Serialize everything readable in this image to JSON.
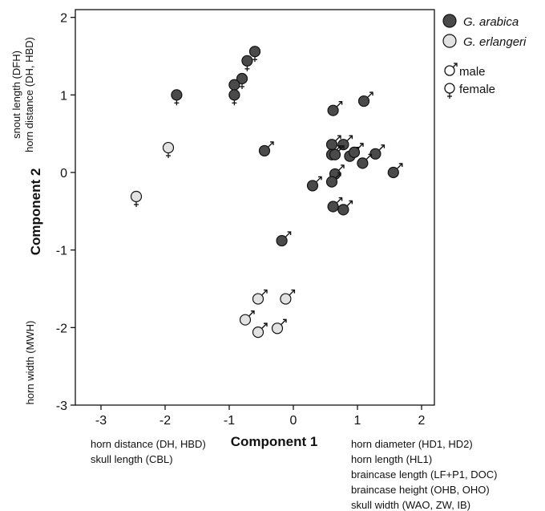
{
  "chart_data": {
    "type": "scatter",
    "xlabel": "Component 1",
    "ylabel": "Component 2",
    "xlim": [
      -3.4,
      2.2
    ],
    "ylim": [
      -3,
      2.1
    ],
    "x_ticks": [
      -3,
      -2,
      -1,
      0,
      1,
      2
    ],
    "y_ticks": [
      2,
      1,
      0,
      -1,
      -2,
      -3
    ],
    "grid": false,
    "legend_position": "right",
    "series": [
      {
        "name": "G. arabica",
        "color": "#4a4a4a",
        "points": [
          {
            "x": -0.6,
            "y": 1.56,
            "sex": "female"
          },
          {
            "x": -0.72,
            "y": 1.44,
            "sex": "female"
          },
          {
            "x": -0.8,
            "y": 1.21,
            "sex": "female"
          },
          {
            "x": -0.92,
            "y": 1.13,
            "sex": "female"
          },
          {
            "x": -0.92,
            "y": 1.0,
            "sex": "female"
          },
          {
            "x": -1.82,
            "y": 1.0,
            "sex": "female"
          },
          {
            "x": -0.45,
            "y": 0.28,
            "sex": "male"
          },
          {
            "x": 0.62,
            "y": 0.8,
            "sex": "male"
          },
          {
            "x": 1.1,
            "y": 0.92,
            "sex": "male"
          },
          {
            "x": 0.6,
            "y": 0.36,
            "sex": "male"
          },
          {
            "x": 0.78,
            "y": 0.36,
            "sex": "male"
          },
          {
            "x": 0.6,
            "y": 0.23,
            "sex": "male"
          },
          {
            "x": 0.65,
            "y": 0.23,
            "sex": "male"
          },
          {
            "x": 0.88,
            "y": 0.21,
            "sex": "male"
          },
          {
            "x": 0.95,
            "y": 0.26,
            "sex": "male"
          },
          {
            "x": 1.28,
            "y": 0.24,
            "sex": "male"
          },
          {
            "x": 1.08,
            "y": 0.12,
            "sex": "male"
          },
          {
            "x": 1.56,
            "y": 0.0,
            "sex": "male"
          },
          {
            "x": 0.65,
            "y": -0.02,
            "sex": "male"
          },
          {
            "x": 0.6,
            "y": -0.12,
            "sex": "male"
          },
          {
            "x": 0.3,
            "y": -0.17,
            "sex": "male"
          },
          {
            "x": 0.62,
            "y": -0.44,
            "sex": "male"
          },
          {
            "x": 0.78,
            "y": -0.48,
            "sex": "male"
          },
          {
            "x": -0.18,
            "y": -0.88,
            "sex": "male"
          }
        ]
      },
      {
        "name": "G. erlangeri",
        "color": "#e2e2e2",
        "points": [
          {
            "x": -1.95,
            "y": 0.32,
            "sex": "female"
          },
          {
            "x": -2.45,
            "y": -0.31,
            "sex": "female"
          },
          {
            "x": -0.55,
            "y": -1.63,
            "sex": "male"
          },
          {
            "x": -0.12,
            "y": -1.63,
            "sex": "male"
          },
          {
            "x": -0.75,
            "y": -1.9,
            "sex": "male"
          },
          {
            "x": -0.55,
            "y": -2.06,
            "sex": "male"
          },
          {
            "x": -0.25,
            "y": -2.01,
            "sex": "male"
          }
        ]
      }
    ],
    "legend_sex": [
      {
        "symbol": "male",
        "label": "male"
      },
      {
        "symbol": "female",
        "label": "female"
      }
    ],
    "annotations": {
      "y_top_lines": [
        "snout length (DFH)",
        "horn distance (DH, HBD)"
      ],
      "y_bottom_lines": [
        "horn width (MWH)"
      ],
      "x_left_lines": [
        "horn distance (DH, HBD)",
        "skull length (CBL)"
      ],
      "x_right_lines": [
        "horn diameter (HD1, HD2)",
        "horn length (HL1)",
        "braincase length (LF+P1, DOC)",
        "braincase height (OHB, OHO)",
        "skull width (WAO, ZW, IB)"
      ]
    }
  }
}
